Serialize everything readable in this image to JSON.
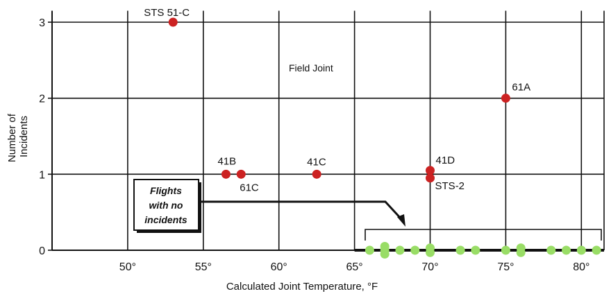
{
  "chart_data": {
    "type": "scatter",
    "title": "",
    "xlabel": "Calculated Joint Temperature, °F",
    "ylabel_lines": [
      "Number of",
      "Incidents"
    ],
    "xlim": [
      45,
      81.5
    ],
    "ylim": [
      0,
      3.15
    ],
    "x_ticks": [
      50,
      55,
      60,
      65,
      70,
      75,
      80
    ],
    "x_tick_labels": [
      "50°",
      "55°",
      "60°",
      "65°",
      "70°",
      "75°",
      "80°"
    ],
    "y_ticks": [
      0,
      1,
      2,
      3
    ],
    "y_tick_labels": [
      "0",
      "1",
      "2",
      "3"
    ],
    "grid": true,
    "annotation": "Field Joint",
    "callout_lines": [
      "Flights",
      "with no",
      "incidents"
    ],
    "colors": {
      "incident": "#cc2222",
      "no_incident": "#99dd66",
      "grid": "#111111"
    },
    "series": [
      {
        "points": [
          {
            "x": 53,
            "y": 3,
            "label": "STS 51-C"
          },
          {
            "x": 56.5,
            "y": 1,
            "label": "41B"
          },
          {
            "x": 57.5,
            "y": 1,
            "label": "61C"
          },
          {
            "x": 62.5,
            "y": 1,
            "label": "41C"
          },
          {
            "x": 70,
            "y": 1.05,
            "label": "41D"
          },
          {
            "x": 70,
            "y": 0.95,
            "label": "STS-2"
          },
          {
            "x": 75,
            "y": 2,
            "label": "61A"
          }
        ]
      },
      {
        "points": [
          {
            "x": 66,
            "y": 0
          },
          {
            "x": 67,
            "y": 0.05
          },
          {
            "x": 67,
            "y": 0
          },
          {
            "x": 67,
            "y": -0.05
          },
          {
            "x": 68,
            "y": 0
          },
          {
            "x": 69,
            "y": 0
          },
          {
            "x": 70,
            "y": 0.03
          },
          {
            "x": 70,
            "y": -0.03
          },
          {
            "x": 72,
            "y": 0
          },
          {
            "x": 73,
            "y": 0
          },
          {
            "x": 75,
            "y": 0
          },
          {
            "x": 76,
            "y": 0.03
          },
          {
            "x": 76,
            "y": -0.03
          },
          {
            "x": 78,
            "y": 0
          },
          {
            "x": 79,
            "y": 0
          },
          {
            "x": 80,
            "y": 0
          },
          {
            "x": 81,
            "y": 0
          }
        ]
      }
    ]
  }
}
